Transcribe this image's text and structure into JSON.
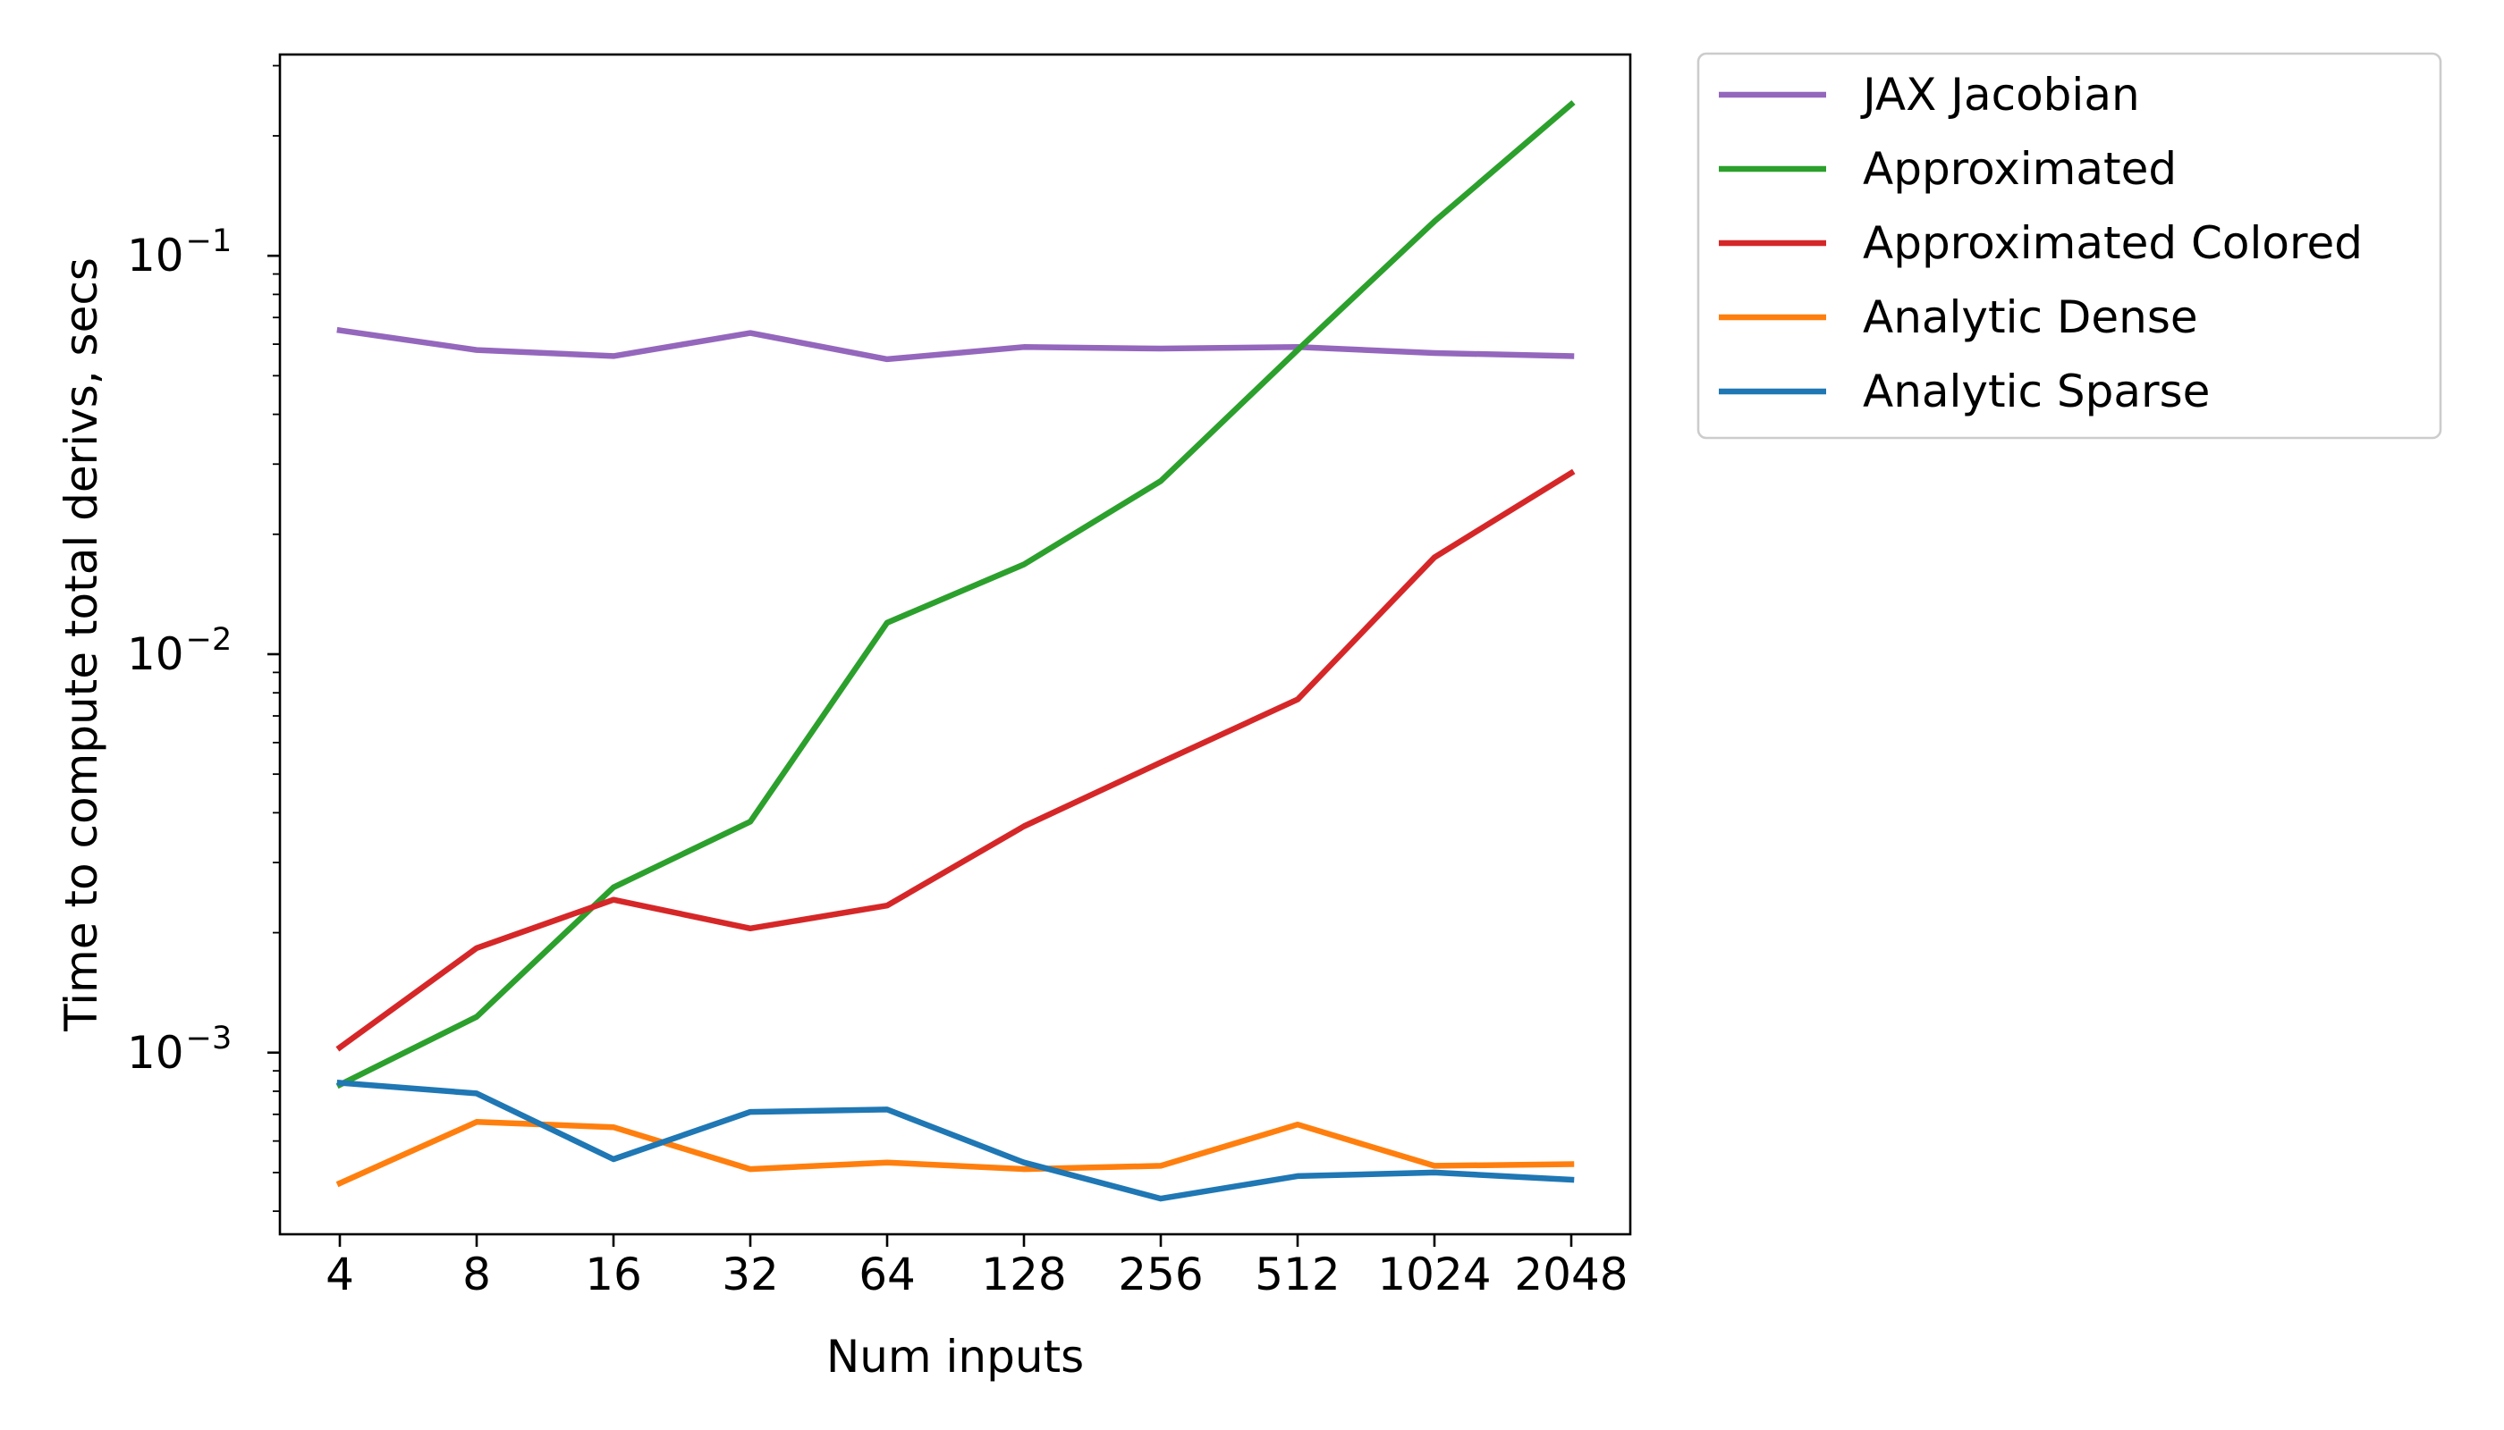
{
  "chart_data": {
    "type": "line",
    "title": "",
    "xlabel": "Num inputs",
    "ylabel": "Time to compute total derivs, secs",
    "x": [
      4,
      8,
      16,
      32,
      64,
      128,
      256,
      512,
      1024,
      2048
    ],
    "x_tick_labels": [
      "4",
      "8",
      "16",
      "32",
      "64",
      "128",
      "256",
      "512",
      "1024",
      "2048"
    ],
    "y_scale": "log",
    "ylim": [
      0.00035,
      0.32
    ],
    "y_ticks": [
      {
        "value": 0.1,
        "base": "10",
        "exp": "−1"
      },
      {
        "value": 0.01,
        "base": "10",
        "exp": "−2"
      },
      {
        "value": 0.001,
        "base": "10",
        "exp": "−3"
      }
    ],
    "grid": false,
    "legend_position": "outside-top-right",
    "series": [
      {
        "name": "JAX Jacobian",
        "color": "#9467bd",
        "values": [
          0.065,
          0.058,
          0.056,
          0.064,
          0.055,
          0.059,
          0.0585,
          0.059,
          0.057,
          0.056
        ]
      },
      {
        "name": "Approximated",
        "color": "#2ca02c",
        "values": [
          0.00083,
          0.00123,
          0.0026,
          0.0038,
          0.012,
          0.0168,
          0.0272,
          0.058,
          0.122,
          0.24
        ]
      },
      {
        "name": "Approximated Colored",
        "color": "#d62728",
        "values": [
          0.00103,
          0.00183,
          0.00242,
          0.00205,
          0.00234,
          0.0037,
          0.00535,
          0.0077,
          0.0175,
          0.0285
        ]
      },
      {
        "name": "Analytic Dense",
        "color": "#ff7f0e",
        "values": [
          0.00047,
          0.00067,
          0.00065,
          0.00051,
          0.00053,
          0.00051,
          0.00052,
          0.00066,
          0.00052,
          0.000525
        ]
      },
      {
        "name": "Analytic Sparse",
        "color": "#1f77b4",
        "values": [
          0.00084,
          0.00079,
          0.00054,
          0.00071,
          0.00072,
          0.00053,
          0.00043,
          0.00049,
          0.0005,
          0.00048
        ]
      }
    ]
  }
}
